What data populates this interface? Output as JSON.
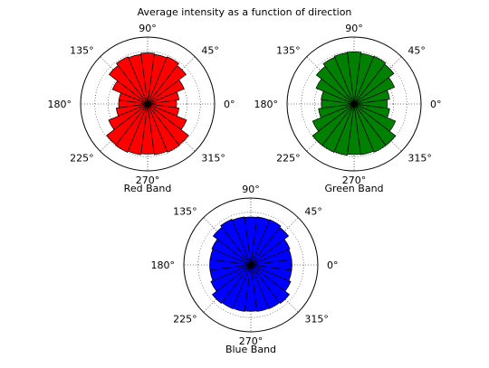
{
  "figure": {
    "title": "Average intensity as a function of direction"
  },
  "chart_data": [
    {
      "type": "polar-bar",
      "xlabel": "Red Band",
      "color": "#ff0000",
      "theta_labels": [
        "0°",
        "45°",
        "90°",
        "135°",
        "180°",
        "225°",
        "270°",
        "315°"
      ],
      "theta_deg": [
        0,
        15,
        30,
        45,
        60,
        75,
        90,
        105,
        120,
        135,
        150,
        165,
        180,
        195,
        210,
        225,
        240,
        255,
        270,
        285,
        300,
        315,
        330,
        345
      ],
      "values": [
        0.55,
        0.6,
        0.75,
        0.92,
        0.97,
        0.95,
        0.97,
        0.95,
        0.97,
        0.92,
        0.72,
        0.55,
        0.55,
        0.6,
        0.8,
        0.98,
        0.99,
        0.97,
        0.95,
        0.97,
        0.99,
        0.98,
        0.8,
        0.6
      ],
      "rlim": [
        0,
        1.27
      ]
    },
    {
      "type": "polar-bar",
      "xlabel": "Green Band",
      "color": "#008000",
      "theta_labels": [
        "0°",
        "45°",
        "90°",
        "135°",
        "180°",
        "225°",
        "270°",
        "315°"
      ],
      "theta_deg": [
        0,
        15,
        30,
        45,
        60,
        75,
        90,
        105,
        120,
        135,
        150,
        165,
        180,
        195,
        210,
        225,
        240,
        255,
        270,
        285,
        300,
        315,
        330,
        345
      ],
      "values": [
        0.63,
        0.68,
        0.83,
        0.95,
        0.98,
        0.97,
        0.99,
        0.98,
        0.96,
        0.9,
        0.78,
        0.63,
        0.62,
        0.68,
        0.85,
        0.99,
        0.99,
        0.98,
        0.96,
        0.97,
        0.99,
        0.99,
        0.85,
        0.68
      ],
      "rlim": [
        0,
        1.27
      ]
    },
    {
      "type": "polar-bar",
      "xlabel": "Blue Band",
      "color": "#0000ff",
      "theta_labels": [
        "0°",
        "45°",
        "90°",
        "135°",
        "180°",
        "225°",
        "270°",
        "315°"
      ],
      "theta_deg": [
        0,
        15,
        30,
        45,
        60,
        75,
        90,
        105,
        120,
        135,
        150,
        165,
        180,
        195,
        210,
        225,
        240,
        255,
        270,
        285,
        300,
        315,
        330,
        345
      ],
      "values": [
        0.78,
        0.78,
        0.8,
        0.9,
        0.93,
        0.92,
        0.91,
        0.92,
        0.94,
        0.9,
        0.8,
        0.78,
        0.78,
        0.78,
        0.82,
        0.92,
        0.9,
        0.89,
        0.88,
        0.89,
        0.9,
        0.92,
        0.82,
        0.78
      ],
      "rlim": [
        0,
        1.27
      ]
    }
  ]
}
